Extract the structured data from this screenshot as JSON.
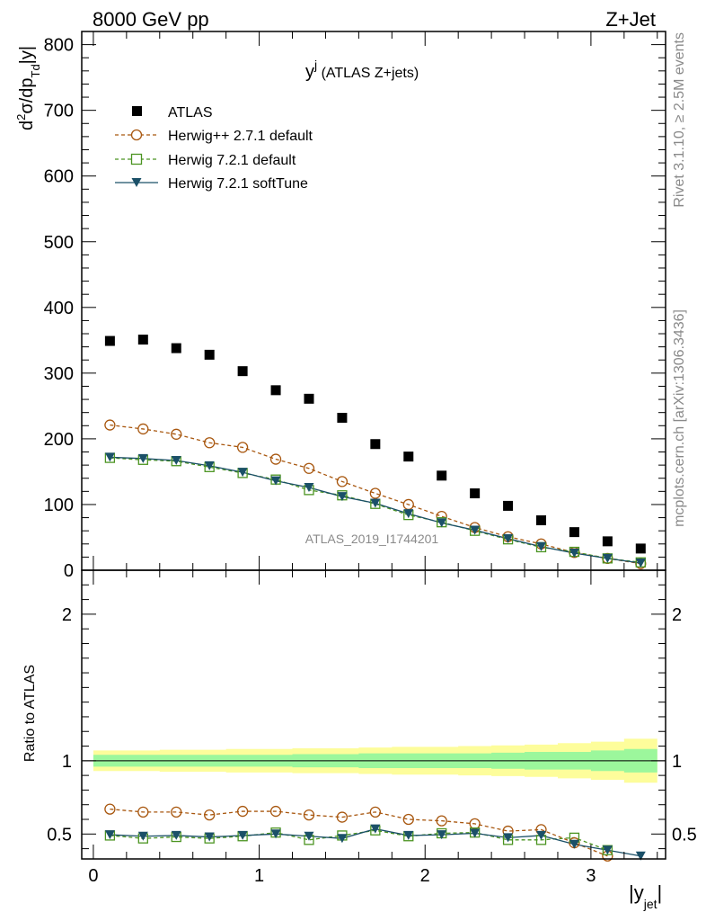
{
  "header": {
    "energy_label": "8000 GeV pp",
    "process_label": "Z+Jet"
  },
  "side_labels": {
    "rivet": "Rivet 3.1.10, ≥ 2.5M events",
    "mcplots": "mcplots.cern.ch [arXiv:1306.3436]"
  },
  "chart_data": [
    {
      "type": "scatter",
      "panel": "main",
      "title_main": "y",
      "title_sup": "j",
      "title_suffix": " (ATLAS Z+jets)",
      "watermark": "ATLAS_2019_I1744201",
      "ylabel": "d²σ/dp_Td|y|",
      "ylim": [
        0,
        820
      ],
      "xlim": [
        -0.07,
        3.45
      ],
      "yticks": [
        "0",
        "100",
        "200",
        "300",
        "400",
        "500",
        "600",
        "700",
        "800"
      ],
      "legend_position": "top-left",
      "x": [
        0.1,
        0.3,
        0.5,
        0.7,
        0.9,
        1.1,
        1.3,
        1.5,
        1.7,
        1.9,
        2.1,
        2.3,
        2.5,
        2.7,
        2.9,
        3.1,
        3.3
      ],
      "series": [
        {
          "name": "ATLAS",
          "style": "square-filled",
          "color": "#000000",
          "values": [
            349,
            351,
            338,
            328,
            303,
            274,
            261,
            232,
            192,
            173,
            144,
            117,
            98,
            76,
            58,
            44,
            33
          ]
        },
        {
          "name": "Herwig++ 2.7.1 default",
          "style": "circle-open-dashed",
          "color": "#a8570f",
          "values": [
            221,
            215,
            207,
            194,
            187,
            169,
            155,
            135,
            117,
            100,
            82,
            65,
            51,
            40,
            27,
            18,
            10
          ]
        },
        {
          "name": "Herwig 7.2.1 default",
          "style": "square-open-dashed",
          "color": "#4b9421",
          "values": [
            171,
            168,
            166,
            157,
            148,
            138,
            122,
            114,
            101,
            84,
            73,
            60,
            47,
            35,
            28,
            18,
            12
          ]
        },
        {
          "name": "Herwig 7.2.1 softTune",
          "style": "triangle-down-solid",
          "color": "#1b5068",
          "values": [
            172,
            170,
            167,
            159,
            149,
            136,
            126,
            112,
            102,
            86,
            72,
            61,
            48,
            36,
            26,
            18,
            11
          ]
        }
      ]
    },
    {
      "type": "scatter",
      "panel": "ratio",
      "ylabel": "Ratio to ATLAS",
      "xlabel_main": "|y",
      "xlabel_sub": "jet",
      "xlabel_end": "|",
      "ylim": [
        0.33,
        2.3
      ],
      "xlim": [
        -0.07,
        3.45
      ],
      "yticks": [
        "0.5",
        "1",
        "2"
      ],
      "xticks": [
        "0",
        "1",
        "2",
        "3"
      ],
      "band_edges": [
        0.0,
        0.2,
        0.4,
        0.6,
        0.8,
        1.0,
        1.2,
        1.4,
        1.6,
        1.8,
        2.0,
        2.2,
        2.4,
        2.6,
        2.8,
        3.0,
        3.2,
        3.4
      ],
      "inner_band": [
        [
          0.96,
          1.04
        ],
        [
          0.96,
          1.04
        ],
        [
          0.96,
          1.04
        ],
        [
          0.96,
          1.04
        ],
        [
          0.96,
          1.04
        ],
        [
          0.96,
          1.04
        ],
        [
          0.955,
          1.045
        ],
        [
          0.955,
          1.045
        ],
        [
          0.95,
          1.05
        ],
        [
          0.95,
          1.05
        ],
        [
          0.95,
          1.05
        ],
        [
          0.95,
          1.05
        ],
        [
          0.945,
          1.055
        ],
        [
          0.94,
          1.06
        ],
        [
          0.94,
          1.06
        ],
        [
          0.93,
          1.07
        ],
        [
          0.92,
          1.08
        ]
      ],
      "outer_band": [
        [
          0.93,
          1.07
        ],
        [
          0.93,
          1.07
        ],
        [
          0.925,
          1.075
        ],
        [
          0.925,
          1.075
        ],
        [
          0.92,
          1.08
        ],
        [
          0.92,
          1.08
        ],
        [
          0.915,
          1.085
        ],
        [
          0.915,
          1.085
        ],
        [
          0.91,
          1.09
        ],
        [
          0.905,
          1.095
        ],
        [
          0.905,
          1.095
        ],
        [
          0.9,
          1.1
        ],
        [
          0.895,
          1.105
        ],
        [
          0.89,
          1.11
        ],
        [
          0.88,
          1.12
        ],
        [
          0.87,
          1.13
        ],
        [
          0.85,
          1.15
        ]
      ],
      "series": [
        {
          "name": "Herwig++ 2.7.1 default",
          "style": "circle-open-dashed",
          "color": "#a8570f",
          "values": [
            0.67,
            0.65,
            0.65,
            0.63,
            0.655,
            0.655,
            0.63,
            0.615,
            0.65,
            0.6,
            0.59,
            0.57,
            0.52,
            0.53,
            0.44,
            0.35,
            null
          ]
        },
        {
          "name": "Herwig 7.2.1 default",
          "style": "square-open-dashed",
          "color": "#4b9421",
          "values": [
            0.49,
            0.47,
            0.48,
            0.47,
            0.485,
            0.51,
            0.46,
            0.49,
            0.525,
            0.485,
            0.505,
            0.51,
            0.46,
            0.46,
            0.475,
            0.39,
            null
          ]
        },
        {
          "name": "Herwig 7.2.1 softTune",
          "style": "triangle-down-solid",
          "color": "#1b5068",
          "values": [
            0.495,
            0.485,
            0.49,
            0.48,
            0.49,
            0.5,
            0.485,
            0.47,
            0.535,
            0.49,
            0.495,
            0.505,
            0.475,
            0.49,
            0.43,
            0.39,
            0.35
          ]
        }
      ]
    }
  ]
}
